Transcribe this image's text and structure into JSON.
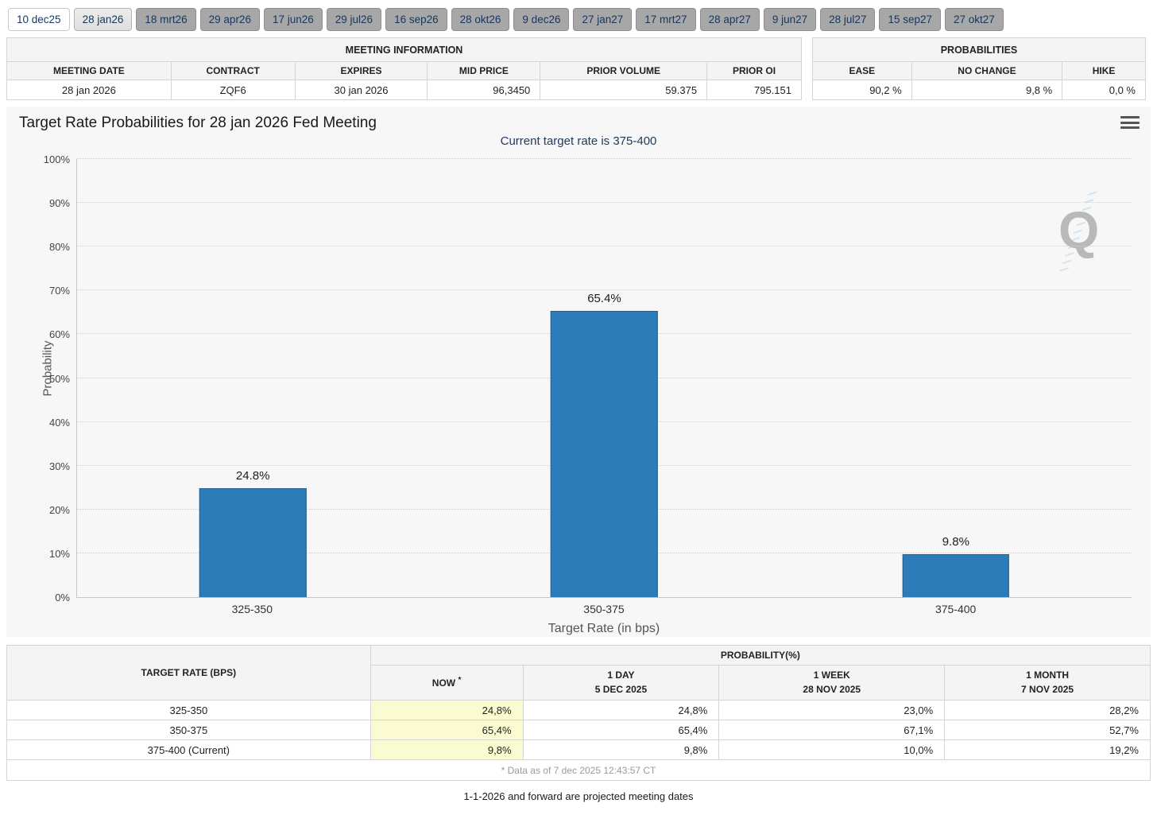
{
  "tabs": {
    "items": [
      "10 dec25",
      "28 jan26",
      "18 mrt26",
      "29 apr26",
      "17 jun26",
      "29 jul26",
      "16 sep26",
      "28 okt26",
      "9 dec26",
      "27 jan27",
      "17 mrt27",
      "28 apr27",
      "9 jun27",
      "28 jul27",
      "15 sep27",
      "27 okt27"
    ],
    "active": "28 jan26"
  },
  "meeting_info": {
    "title": "MEETING INFORMATION",
    "headers": [
      "MEETING DATE",
      "CONTRACT",
      "EXPIRES",
      "MID PRICE",
      "PRIOR VOLUME",
      "PRIOR OI"
    ],
    "values": [
      "28 jan 2026",
      "ZQF6",
      "30 jan 2026",
      "96,3450",
      "59.375",
      "795.151"
    ]
  },
  "probabilities_summary": {
    "title": "PROBABILITIES",
    "headers": [
      "EASE",
      "NO CHANGE",
      "HIKE"
    ],
    "values": [
      "90,2 %",
      "9,8 %",
      "0,0 %"
    ]
  },
  "chart": {
    "title": "Target Rate Probabilities for 28 jan 2026 Fed Meeting",
    "subtitle": "Current target rate is 375-400"
  },
  "chart_data": {
    "type": "bar",
    "title": "Target Rate Probabilities for 28 jan 2026 Fed Meeting",
    "subtitle": "Current target rate is 375-400",
    "categories": [
      "325-350",
      "350-375",
      "375-400"
    ],
    "values": [
      24.8,
      65.4,
      9.8
    ],
    "data_labels": [
      "24.8%",
      "65.4%",
      "9.8%"
    ],
    "xlabel": "Target Rate (in bps)",
    "ylabel": "Probability",
    "ylim": [
      0,
      100
    ],
    "ytick_step": 10,
    "ytick_suffix": "%",
    "grid": "dotted horizontal gridlines",
    "legend": "none",
    "bar_color": "#2b7cb8"
  },
  "history_table": {
    "col1_header": "TARGET RATE (BPS)",
    "group_header": "PROBABILITY(%)",
    "sub_headers": [
      {
        "line1": "NOW",
        "sup": "*"
      },
      {
        "line1": "1 DAY",
        "line2": "5 DEC 2025"
      },
      {
        "line1": "1 WEEK",
        "line2": "28 NOV 2025"
      },
      {
        "line1": "1 MONTH",
        "line2": "7 NOV 2025"
      }
    ],
    "rows": [
      {
        "target": "325-350",
        "now": "24,8%",
        "day": "24,8%",
        "week": "23,0%",
        "month": "28,2%"
      },
      {
        "target": "350-375",
        "now": "65,4%",
        "day": "65,4%",
        "week": "67,1%",
        "month": "52,7%"
      },
      {
        "target": "375-400 (Current)",
        "now": "9,8%",
        "day": "9,8%",
        "week": "10,0%",
        "month": "19,2%"
      }
    ],
    "footnote": "* Data as of 7 dec 2025 12:43:57 CT"
  },
  "footer": {
    "note": "1-1-2026 and forward are projected meeting dates"
  },
  "icons": {
    "chart_menu": "hamburger-menu-icon",
    "watermark": "q-logo-watermark"
  },
  "colors": {
    "bar": "#2b7cb8",
    "tab_text": "#17365d",
    "now_highlight": "#fbfbd2",
    "subtitle": "#223a5e"
  }
}
